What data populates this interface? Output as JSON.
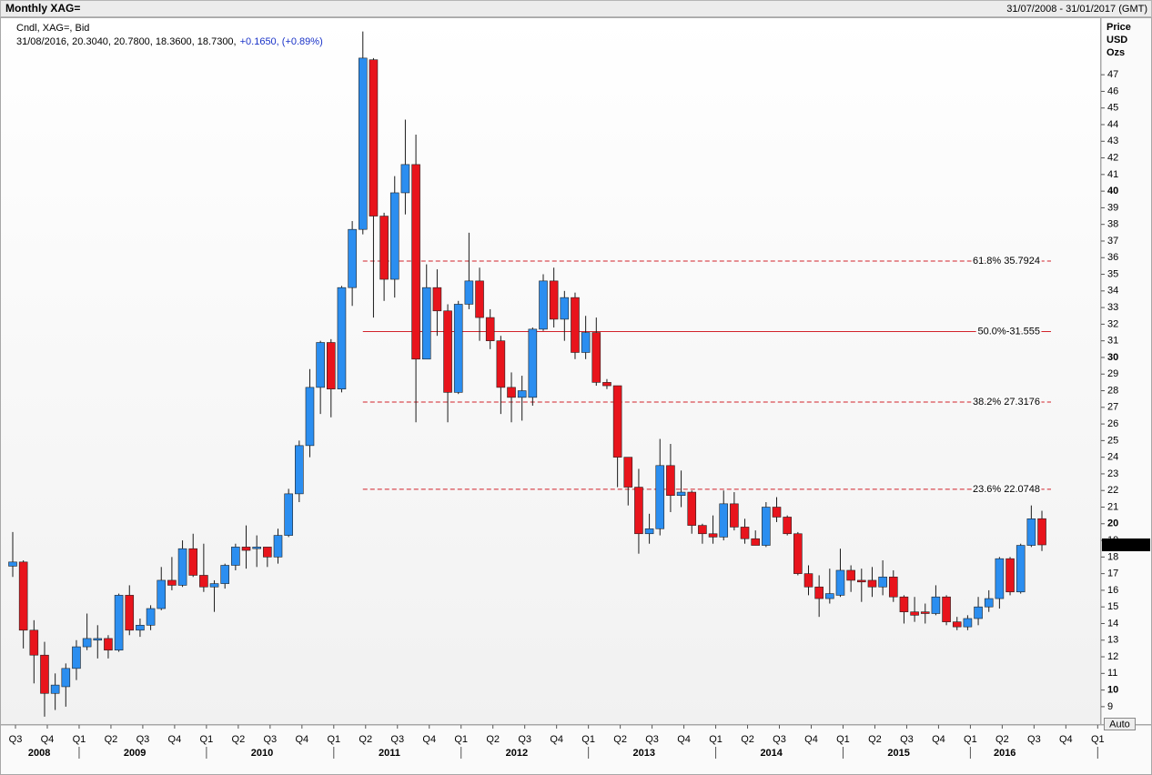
{
  "header": {
    "title": "Monthly XAG=",
    "range": "31/07/2008 - 31/01/2017 (GMT)"
  },
  "chart_data": {
    "type": "candlestick",
    "legend_line": "Cndl, XAG=, Bid",
    "info": "31/08/2016, 20.3040, 20.7800, 18.3600, 18.7300,",
    "change": "+0.1650, (+0.89%)",
    "y_axis_label": [
      "Price",
      "USD",
      "Ozs"
    ],
    "up_color": "#2b8ef0",
    "down_color": "#e8141c",
    "fib_color": "#d2232a",
    "series": [
      {
        "open": [
          17.45,
          17.7,
          13.6,
          12.1,
          9.8,
          10.2,
          11.3,
          12.6,
          13.0,
          13.1,
          12.4,
          15.7,
          13.6,
          13.9,
          14.9,
          16.6,
          16.3,
          18.5,
          16.9,
          16.2,
          16.4,
          17.5,
          18.6,
          18.5,
          18.6,
          18.0,
          19.3,
          21.8,
          24.7,
          28.2,
          30.9,
          28.1,
          34.2,
          37.7,
          47.9,
          38.5,
          34.7,
          39.9,
          41.6,
          29.9,
          34.2,
          32.8,
          27.9,
          33.2,
          34.6,
          32.4,
          31.0,
          28.2,
          27.6,
          27.6,
          31.7,
          34.6,
          32.3,
          33.6,
          30.3,
          31.5,
          28.5,
          28.3,
          24.0,
          22.2,
          19.4,
          19.7,
          23.5,
          21.7,
          21.9,
          19.9,
          19.4,
          19.2,
          21.2,
          19.8,
          19.1,
          18.7,
          21.0,
          20.4,
          19.4,
          17.0,
          16.2,
          15.5,
          15.7,
          17.2,
          16.6,
          16.6,
          16.2,
          16.8,
          15.6,
          14.7,
          14.7,
          14.6,
          15.6,
          14.1,
          13.8,
          14.3,
          15.0,
          15.5,
          17.9,
          15.9,
          18.7,
          20.304
        ],
        "high": [
          19.5,
          17.8,
          14.2,
          12.9,
          11.0,
          11.6,
          13.0,
          14.6,
          13.9,
          13.3,
          15.8,
          16.3,
          14.3,
          15.1,
          17.4,
          18.0,
          19.0,
          19.4,
          18.8,
          16.6,
          17.6,
          18.8,
          19.9,
          19.3,
          18.6,
          19.7,
          22.1,
          25.0,
          29.3,
          31.0,
          31.1,
          34.3,
          38.2,
          49.6,
          48.0,
          38.7,
          40.9,
          44.3,
          43.4,
          35.6,
          35.3,
          33.2,
          33.4,
          37.5,
          35.4,
          32.9,
          31.3,
          29.1,
          28.9,
          31.8,
          35.0,
          35.4,
          34.0,
          33.9,
          32.5,
          32.4,
          28.7,
          28.3,
          24.0,
          23.3,
          20.6,
          25.1,
          24.8,
          23.2,
          22.0,
          20.0,
          20.5,
          22.0,
          21.9,
          20.3,
          19.6,
          21.3,
          21.6,
          20.5,
          19.5,
          17.5,
          16.9,
          17.3,
          18.5,
          17.5,
          17.3,
          17.4,
          17.8,
          17.2,
          15.7,
          15.6,
          15.2,
          16.3,
          15.7,
          14.4,
          14.5,
          15.6,
          16.0,
          18.0,
          18.0,
          18.8,
          21.1,
          20.78
        ],
        "low": [
          16.8,
          12.5,
          10.4,
          8.4,
          8.8,
          9.0,
          10.6,
          12.4,
          11.9,
          11.9,
          12.3,
          13.3,
          13.2,
          13.6,
          14.8,
          16.0,
          16.2,
          16.8,
          15.9,
          14.7,
          16.1,
          17.2,
          17.3,
          17.4,
          17.4,
          17.6,
          19.2,
          21.3,
          24.0,
          26.6,
          26.4,
          27.9,
          33.1,
          37.4,
          32.4,
          33.4,
          33.6,
          38.6,
          26.1,
          30.0,
          31.3,
          26.1,
          27.8,
          32.9,
          31.0,
          30.5,
          26.6,
          26.1,
          26.2,
          27.1,
          31.6,
          31.8,
          31.0,
          29.9,
          29.9,
          28.3,
          28.1,
          22.2,
          21.1,
          18.2,
          18.8,
          19.3,
          20.7,
          21.0,
          19.4,
          18.8,
          18.8,
          19.0,
          19.6,
          18.8,
          18.7,
          18.6,
          20.1,
          19.3,
          16.9,
          15.7,
          14.4,
          15.2,
          15.6,
          15.9,
          15.3,
          15.6,
          15.7,
          15.3,
          14.0,
          14.1,
          14.0,
          14.5,
          13.9,
          13.6,
          13.6,
          13.9,
          14.7,
          14.9,
          15.7,
          15.8,
          18.6,
          18.36
        ],
        "close": [
          17.7,
          13.6,
          12.1,
          9.8,
          10.3,
          11.3,
          12.6,
          13.1,
          13.1,
          12.4,
          15.7,
          13.6,
          13.9,
          14.9,
          16.6,
          16.3,
          18.5,
          16.9,
          16.2,
          16.4,
          17.5,
          18.6,
          18.4,
          18.6,
          18.0,
          19.3,
          21.8,
          24.7,
          28.2,
          30.9,
          28.1,
          34.2,
          37.7,
          48.0,
          38.5,
          34.7,
          39.9,
          41.6,
          29.9,
          34.2,
          32.8,
          27.9,
          33.2,
          34.6,
          32.4,
          31.0,
          28.2,
          27.6,
          28.0,
          31.7,
          34.6,
          32.3,
          33.6,
          30.3,
          31.5,
          28.5,
          28.3,
          24.0,
          22.2,
          19.4,
          19.7,
          23.5,
          21.7,
          21.9,
          19.9,
          19.4,
          19.2,
          21.2,
          19.8,
          19.1,
          18.7,
          21.0,
          20.4,
          19.4,
          17.0,
          16.2,
          15.5,
          15.8,
          17.2,
          16.6,
          16.5,
          16.2,
          16.8,
          15.6,
          14.7,
          14.5,
          14.6,
          15.6,
          14.1,
          13.8,
          14.3,
          15.0,
          15.5,
          17.9,
          15.9,
          18.7,
          20.3,
          18.73
        ]
      }
    ],
    "ylim": [
      7.9,
      50.4
    ],
    "yticks": [
      9,
      10,
      11,
      12,
      13,
      14,
      15,
      16,
      17,
      18,
      19,
      20,
      21,
      22,
      23,
      24,
      25,
      26,
      27,
      28,
      29,
      30,
      31,
      32,
      33,
      34,
      35,
      36,
      37,
      38,
      39,
      40,
      41,
      42,
      43,
      44,
      45,
      46,
      47
    ],
    "quarters": [
      "Q3",
      "Q4",
      "Q1",
      "Q2",
      "Q3",
      "Q4",
      "Q1",
      "Q2",
      "Q3",
      "Q4",
      "Q1",
      "Q2",
      "Q3",
      "Q4",
      "Q1",
      "Q2",
      "Q3",
      "Q4",
      "Q1",
      "Q2",
      "Q3",
      "Q4",
      "Q1",
      "Q2",
      "Q3",
      "Q4",
      "Q1",
      "Q2",
      "Q3",
      "Q4",
      "Q1",
      "Q2",
      "Q3",
      "Q4",
      "Q1"
    ],
    "years": [
      "2008",
      "2009",
      "2010",
      "2011",
      "2012",
      "2013",
      "2014",
      "2015",
      "2016"
    ],
    "last_price_label": "18.7300",
    "fib_levels": [
      {
        "value": 35.7924,
        "label": "61.8% 35.7924",
        "style": "dashed"
      },
      {
        "value": 31.555,
        "label": "50.0%-31.555",
        "style": "solid"
      },
      {
        "value": 27.3176,
        "label": "38.2% 27.3176",
        "style": "dashed"
      },
      {
        "value": 22.0748,
        "label": "23.6% 22.0748",
        "style": "dashed"
      }
    ],
    "button": "Auto"
  }
}
